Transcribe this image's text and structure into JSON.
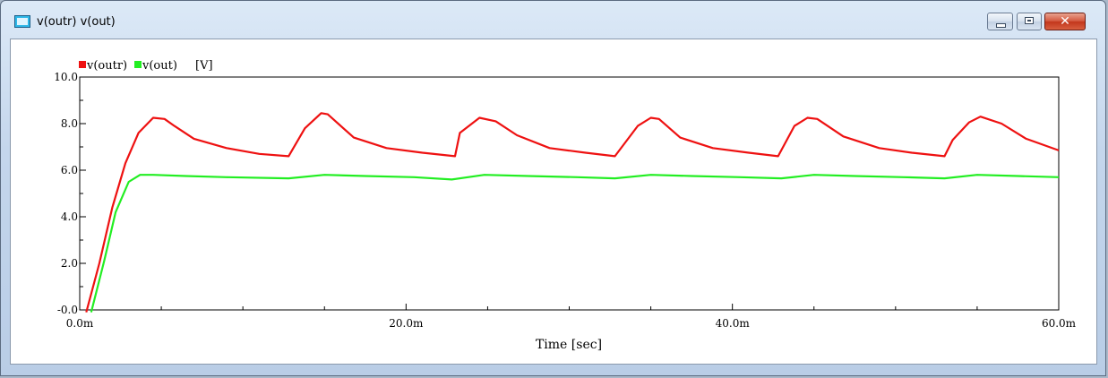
{
  "window": {
    "title": "v(outr) v(out)",
    "close_symbol": "✕"
  },
  "legend": {
    "items": [
      {
        "label": "v(outr)",
        "color": "#ee1111"
      },
      {
        "label": "v(out)",
        "color": "#22ee22"
      }
    ],
    "unit": "[V]"
  },
  "chart_data": {
    "type": "line",
    "xlabel": "Time [sec]",
    "ylabel": "",
    "xlim": [
      0,
      0.06
    ],
    "ylim": [
      0,
      10
    ],
    "grid": false,
    "legend_position": "top-left",
    "x_tick_labels": [
      "0.0m",
      "20.0m",
      "40.0m",
      "60.0m"
    ],
    "x_tick_values": [
      0,
      0.02,
      0.04,
      0.06
    ],
    "y_tick_labels": [
      "-0.0",
      "2.0",
      "4.0",
      "6.0",
      "8.0",
      "10.0"
    ],
    "y_tick_values": [
      0,
      2,
      4,
      6,
      8,
      10
    ],
    "series": [
      {
        "name": "v(outr)",
        "color": "#ee1111",
        "x": [
          0.0004,
          0.0012,
          0.002,
          0.0028,
          0.0036,
          0.0045,
          0.0052,
          0.0058,
          0.007,
          0.009,
          0.011,
          0.0128,
          0.0138,
          0.0148,
          0.0152,
          0.0168,
          0.0188,
          0.021,
          0.023,
          0.0233,
          0.0245,
          0.0255,
          0.0268,
          0.0288,
          0.031,
          0.0328,
          0.0342,
          0.035,
          0.0355,
          0.0368,
          0.0388,
          0.041,
          0.0428,
          0.0438,
          0.0446,
          0.0452,
          0.0468,
          0.049,
          0.051,
          0.053,
          0.0535,
          0.0545,
          0.0552,
          0.0565,
          0.058,
          0.06
        ],
        "y": [
          -0.1,
          2.0,
          4.4,
          6.3,
          7.6,
          8.25,
          8.2,
          7.9,
          7.35,
          6.95,
          6.7,
          6.6,
          7.8,
          8.45,
          8.4,
          7.4,
          6.95,
          6.75,
          6.6,
          7.6,
          8.25,
          8.1,
          7.5,
          6.95,
          6.75,
          6.6,
          7.9,
          8.25,
          8.2,
          7.4,
          6.95,
          6.75,
          6.6,
          7.9,
          8.25,
          8.2,
          7.45,
          6.95,
          6.75,
          6.6,
          7.3,
          8.05,
          8.3,
          8.0,
          7.35,
          6.85
        ]
      },
      {
        "name": "v(out)",
        "color": "#22ee22",
        "x": [
          0.0007,
          0.0015,
          0.0022,
          0.003,
          0.0037,
          0.0045,
          0.0065,
          0.009,
          0.0128,
          0.015,
          0.0175,
          0.0205,
          0.0228,
          0.0248,
          0.0275,
          0.0305,
          0.0328,
          0.035,
          0.0375,
          0.0405,
          0.043,
          0.045,
          0.0475,
          0.0505,
          0.053,
          0.055,
          0.0575,
          0.06
        ],
        "y": [
          -0.1,
          2.1,
          4.2,
          5.5,
          5.8,
          5.8,
          5.75,
          5.7,
          5.65,
          5.8,
          5.75,
          5.7,
          5.6,
          5.8,
          5.75,
          5.7,
          5.65,
          5.8,
          5.75,
          5.7,
          5.65,
          5.8,
          5.75,
          5.7,
          5.65,
          5.8,
          5.75,
          5.7
        ]
      }
    ]
  }
}
